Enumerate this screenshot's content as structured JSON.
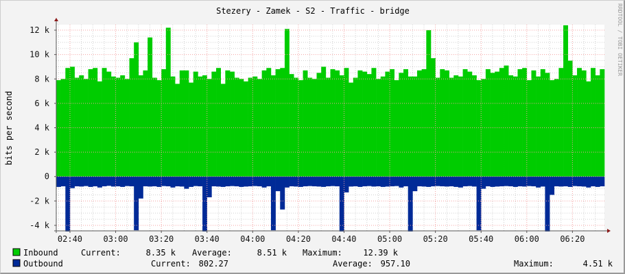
{
  "chart_data": {
    "type": "area",
    "title": "Stezery - Zamek - S2 - Traffic - bridge",
    "ylabel": "bits per second",
    "xlabel": "",
    "watermark": "RRDTOOL / TOBI OETIKER",
    "ylim": [
      -4450,
      12450
    ],
    "xlim": [
      "02:34",
      "06:34"
    ],
    "grid": true,
    "x_step_minutes": 2,
    "x_ticks": [
      "02:40",
      "03:00",
      "03:20",
      "03:40",
      "04:00",
      "04:20",
      "04:40",
      "05:00",
      "05:20",
      "05:40",
      "06:00",
      "06:20"
    ],
    "y_ticks": [
      {
        "value": 12000,
        "label": "12 k"
      },
      {
        "value": 10000,
        "label": "10 k"
      },
      {
        "value": 8000,
        "label": "8 k"
      },
      {
        "value": 6000,
        "label": "6 k"
      },
      {
        "value": 4000,
        "label": "4 k"
      },
      {
        "value": 2000,
        "label": "2 k"
      },
      {
        "value": 0,
        "label": "0"
      },
      {
        "value": -2000,
        "label": "-2 k"
      },
      {
        "value": -4000,
        "label": "-4 k"
      }
    ],
    "series": [
      {
        "name": "Inbound",
        "color": "#00CC00",
        "values": [
          7900,
          8000,
          8900,
          9000,
          8100,
          8300,
          8000,
          8800,
          8900,
          7800,
          8900,
          8600,
          8200,
          8100,
          8300,
          8000,
          9700,
          11000,
          8300,
          8700,
          11400,
          8100,
          7900,
          8800,
          12200,
          8200,
          7600,
          8700,
          8700,
          7700,
          8600,
          8200,
          8300,
          8000,
          8600,
          8900,
          7600,
          8700,
          8600,
          8100,
          8000,
          7800,
          8100,
          8200,
          8000,
          8700,
          8900,
          8300,
          8800,
          8900,
          12100,
          8400,
          8100,
          7900,
          8700,
          8100,
          8000,
          8500,
          9000,
          8100,
          8800,
          8700,
          8300,
          8900,
          7700,
          8100,
          8700,
          8600,
          8400,
          8900,
          8000,
          8200,
          8600,
          8800,
          7900,
          8500,
          8800,
          8200,
          8200,
          8700,
          8800,
          12000,
          9700,
          8100,
          8800,
          8700,
          8100,
          8300,
          8200,
          8800,
          8600,
          8300,
          7900,
          8000,
          8800,
          8500,
          8600,
          8900,
          9100,
          8300,
          8200,
          8800,
          8900,
          7900,
          8700,
          8200,
          8800,
          8500,
          7900,
          8000,
          8900,
          12400,
          9500,
          8300,
          8900,
          8700,
          7800,
          8900,
          8300,
          8800
        ],
        "legend": {
          "current_label": "Current:",
          "current": "8.35 k",
          "average_label": "Average:",
          "average": "8.51 k",
          "maximum_label": "Maximum:",
          "maximum": "12.39 k"
        }
      },
      {
        "name": "Outbound",
        "color": "#002A97",
        "values": [
          -850,
          -800,
          -4500,
          -950,
          -800,
          -820,
          -780,
          -850,
          -800,
          -900,
          -800,
          -760,
          -820,
          -800,
          -850,
          -780,
          -800,
          -4400,
          -1800,
          -800,
          -820,
          -800,
          -850,
          -780,
          -800,
          -900,
          -800,
          -820,
          -1000,
          -850,
          -780,
          -800,
          -4500,
          -1700,
          -800,
          -820,
          -850,
          -800,
          -780,
          -800,
          -850,
          -820,
          -800,
          -780,
          -800,
          -900,
          -800,
          -4400,
          -1200,
          -2700,
          -900,
          -800,
          -820,
          -850,
          -800,
          -780,
          -800,
          -820,
          -850,
          -800,
          -780,
          -800,
          -4500,
          -1300,
          -820,
          -800,
          -850,
          -800,
          -780,
          -820,
          -800,
          -850,
          -820,
          -800,
          -780,
          -900,
          -800,
          -4500,
          -1200,
          -800,
          -820,
          -850,
          -800,
          -780,
          -800,
          -820,
          -800,
          -850,
          -900,
          -800,
          -780,
          -820,
          -4400,
          -1000,
          -800,
          -850,
          -820,
          -800,
          -780,
          -800,
          -850,
          -800,
          -820,
          -780,
          -800,
          -900,
          -820,
          -4500,
          -1500,
          -800,
          -820,
          -800,
          -850,
          -780,
          -800,
          -820,
          -900,
          -800,
          -850,
          -800
        ],
        "legend": {
          "current_label": "Current:",
          "current": "802.27",
          "average_label": "Average:",
          "average": "957.10",
          "maximum_label": "Maximum:",
          "maximum": "4.51 k"
        }
      }
    ]
  }
}
